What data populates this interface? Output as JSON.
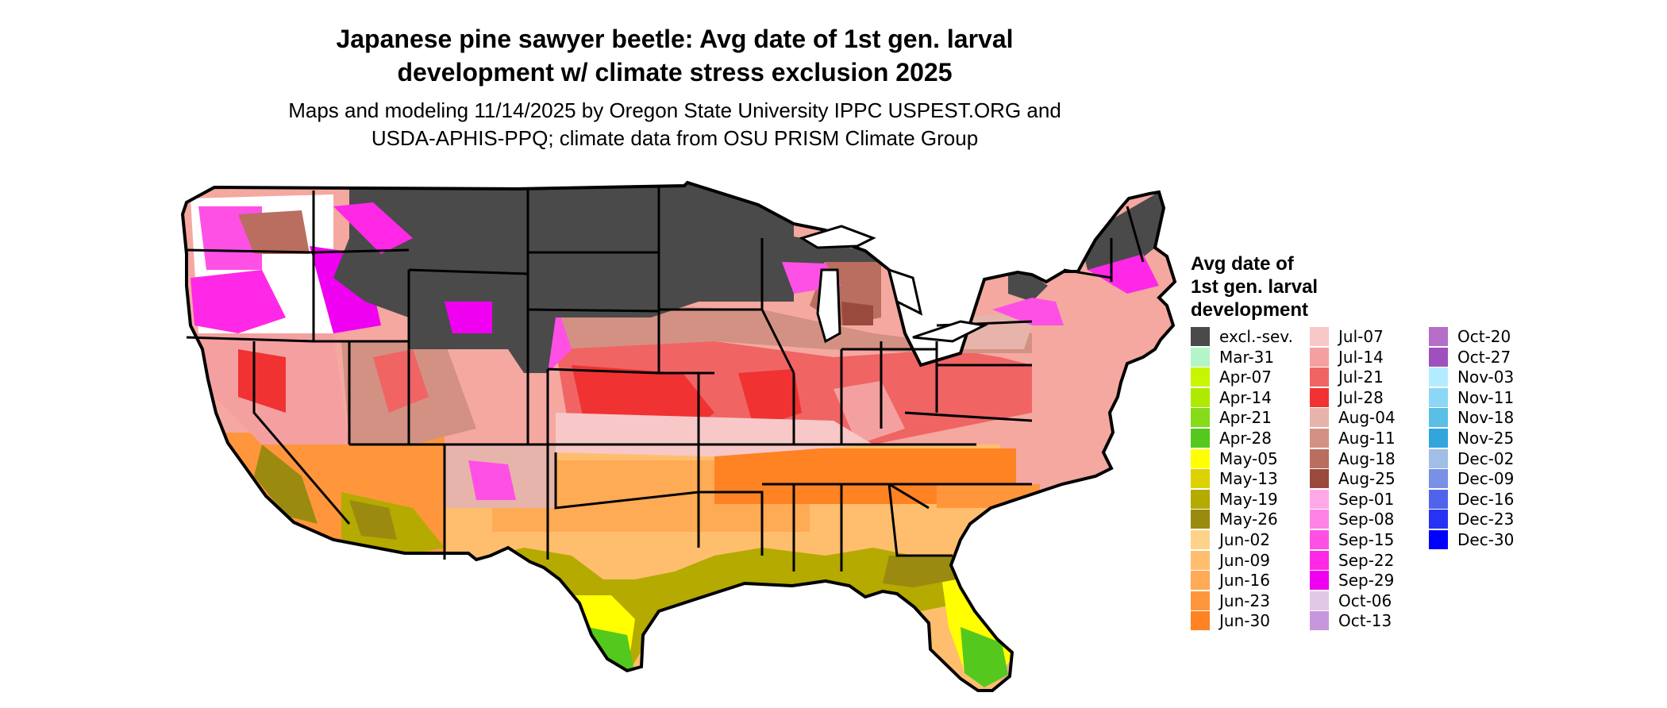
{
  "title": {
    "line1": "Japanese pine sawyer beetle: Avg date of 1st gen. larval",
    "line2": "development w/ climate stress exclusion 2025"
  },
  "subtitle": {
    "line1": "Maps and modeling 11/14/2025 by Oregon State University IPPC USPEST.ORG and",
    "line2": "USDA-APHIS-PPQ; climate data from OSU PRISM Climate Group"
  },
  "legend": {
    "title": {
      "line1": "Avg date of",
      "line2": "1st gen. larval",
      "line3": "development"
    },
    "columns": [
      [
        {
          "label": "excl.-sev.",
          "color": "#4a4a4a"
        },
        {
          "label": "Mar-31",
          "color": "#b3f5c8"
        },
        {
          "label": "Apr-07",
          "color": "#c8f500"
        },
        {
          "label": "Apr-14",
          "color": "#aeea00"
        },
        {
          "label": "Apr-21",
          "color": "#86dc18"
        },
        {
          "label": "Apr-28",
          "color": "#55c81e"
        },
        {
          "label": "May-05",
          "color": "#ffff00"
        },
        {
          "label": "May-13",
          "color": "#dcd200"
        },
        {
          "label": "May-19",
          "color": "#b4aa00"
        },
        {
          "label": "May-26",
          "color": "#9a8a10"
        },
        {
          "label": "Jun-02",
          "color": "#ffd28a"
        },
        {
          "label": "Jun-09",
          "color": "#ffbe6e"
        },
        {
          "label": "Jun-16",
          "color": "#ffaa55"
        },
        {
          "label": "Jun-23",
          "color": "#ff963c"
        },
        {
          "label": "Jun-30",
          "color": "#ff8223"
        }
      ],
      [
        {
          "label": "Jul-07",
          "color": "#f8c8c8"
        },
        {
          "label": "Jul-14",
          "color": "#f4a0a0"
        },
        {
          "label": "Jul-21",
          "color": "#f06464"
        },
        {
          "label": "Jul-28",
          "color": "#f03232"
        },
        {
          "label": "Aug-04",
          "color": "#e6b4aa"
        },
        {
          "label": "Aug-11",
          "color": "#d29182"
        },
        {
          "label": "Aug-18",
          "color": "#b96e5f"
        },
        {
          "label": "Aug-25",
          "color": "#9a4a3c"
        },
        {
          "label": "Sep-01",
          "color": "#ffaae6"
        },
        {
          "label": "Sep-08",
          "color": "#ff82e6"
        },
        {
          "label": "Sep-15",
          "color": "#ff50e6"
        },
        {
          "label": "Sep-22",
          "color": "#ff28e6"
        },
        {
          "label": "Sep-29",
          "color": "#f000f0"
        },
        {
          "label": "Oct-06",
          "color": "#e0c8e6"
        },
        {
          "label": "Oct-13",
          "color": "#c896dc"
        }
      ],
      [
        {
          "label": "Oct-20",
          "color": "#b46ec8"
        },
        {
          "label": "Oct-27",
          "color": "#a050be"
        },
        {
          "label": "Nov-03",
          "color": "#b4ecff"
        },
        {
          "label": "Nov-11",
          "color": "#8cd7f5"
        },
        {
          "label": "Nov-18",
          "color": "#5abee6"
        },
        {
          "label": "Nov-25",
          "color": "#32a5dc"
        },
        {
          "label": "Dec-02",
          "color": "#a0bee6"
        },
        {
          "label": "Dec-09",
          "color": "#7891e6"
        },
        {
          "label": "Dec-16",
          "color": "#5064eb"
        },
        {
          "label": "Dec-23",
          "color": "#2832f5"
        },
        {
          "label": "Dec-30",
          "color": "#0000ff"
        }
      ]
    ]
  }
}
